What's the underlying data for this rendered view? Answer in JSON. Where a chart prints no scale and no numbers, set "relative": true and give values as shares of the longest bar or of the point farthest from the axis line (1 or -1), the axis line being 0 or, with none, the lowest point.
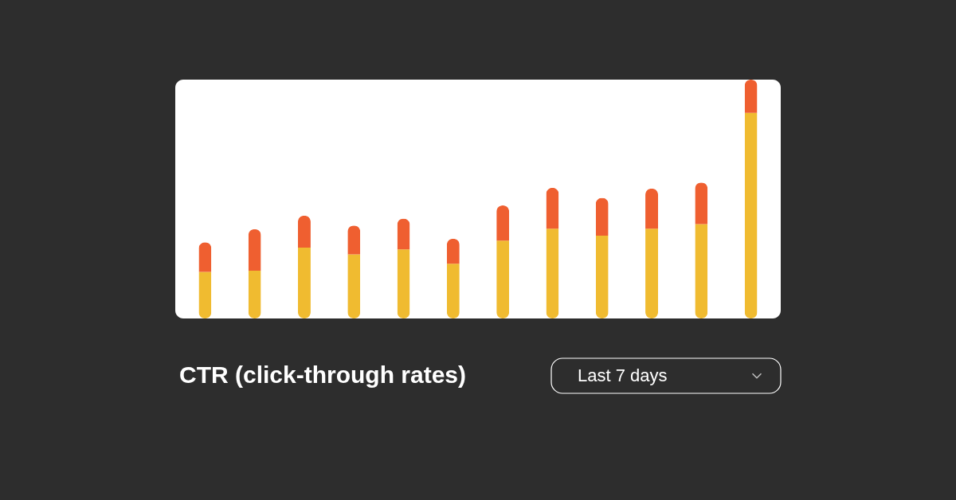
{
  "chart_data": {
    "type": "bar",
    "title": "CTR (click-through rates)",
    "annotations": [
      "Last 7 days"
    ],
    "relative": true,
    "stacked": true,
    "legend": false,
    "categories": [
      null,
      null,
      null,
      null,
      null,
      null,
      null,
      null,
      null,
      null,
      null,
      null
    ],
    "series": [
      {
        "color": "#f0bb30",
        "values": [
          0.195,
          0.2,
          0.297,
          0.268,
          0.289,
          0.229,
          0.326,
          0.376,
          0.347,
          0.376,
          0.395,
          0.861
        ]
      },
      {
        "color": "#ef5f30",
        "values": [
          0.124,
          0.174,
          0.134,
          0.121,
          0.129,
          0.105,
          0.147,
          0.171,
          0.158,
          0.168,
          0.174,
          0.139
        ]
      }
    ]
  }
}
